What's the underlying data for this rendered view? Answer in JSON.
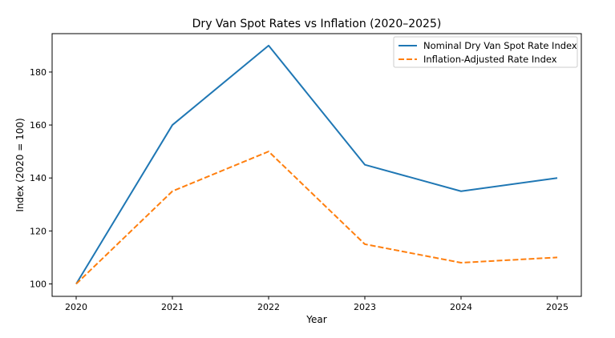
{
  "chart_data": {
    "type": "line",
    "title": "Dry Van Spot Rates vs Inflation (2020–2025)",
    "xlabel": "Year",
    "ylabel": "Index (2020 = 100)",
    "x": [
      2020,
      2021,
      2022,
      2023,
      2024,
      2025
    ],
    "xticks": [
      "2020",
      "2021",
      "2022",
      "2023",
      "2024",
      "2025"
    ],
    "yticks": [
      100,
      120,
      140,
      160,
      180
    ],
    "xlim": [
      2019.75,
      2025.25
    ],
    "ylim": [
      95.3,
      194.5
    ],
    "grid": false,
    "legend_position": "top-right",
    "series": [
      {
        "name": "Nominal Dry Van Spot Rate Index",
        "values": [
          100,
          160,
          190,
          145,
          135,
          140
        ],
        "color": "#1f77b4",
        "style": "solid"
      },
      {
        "name": "Inflation-Adjusted Rate Index",
        "values": [
          100,
          135,
          150,
          115,
          108,
          110
        ],
        "color": "#ff7f0e",
        "style": "dashed"
      }
    ]
  }
}
